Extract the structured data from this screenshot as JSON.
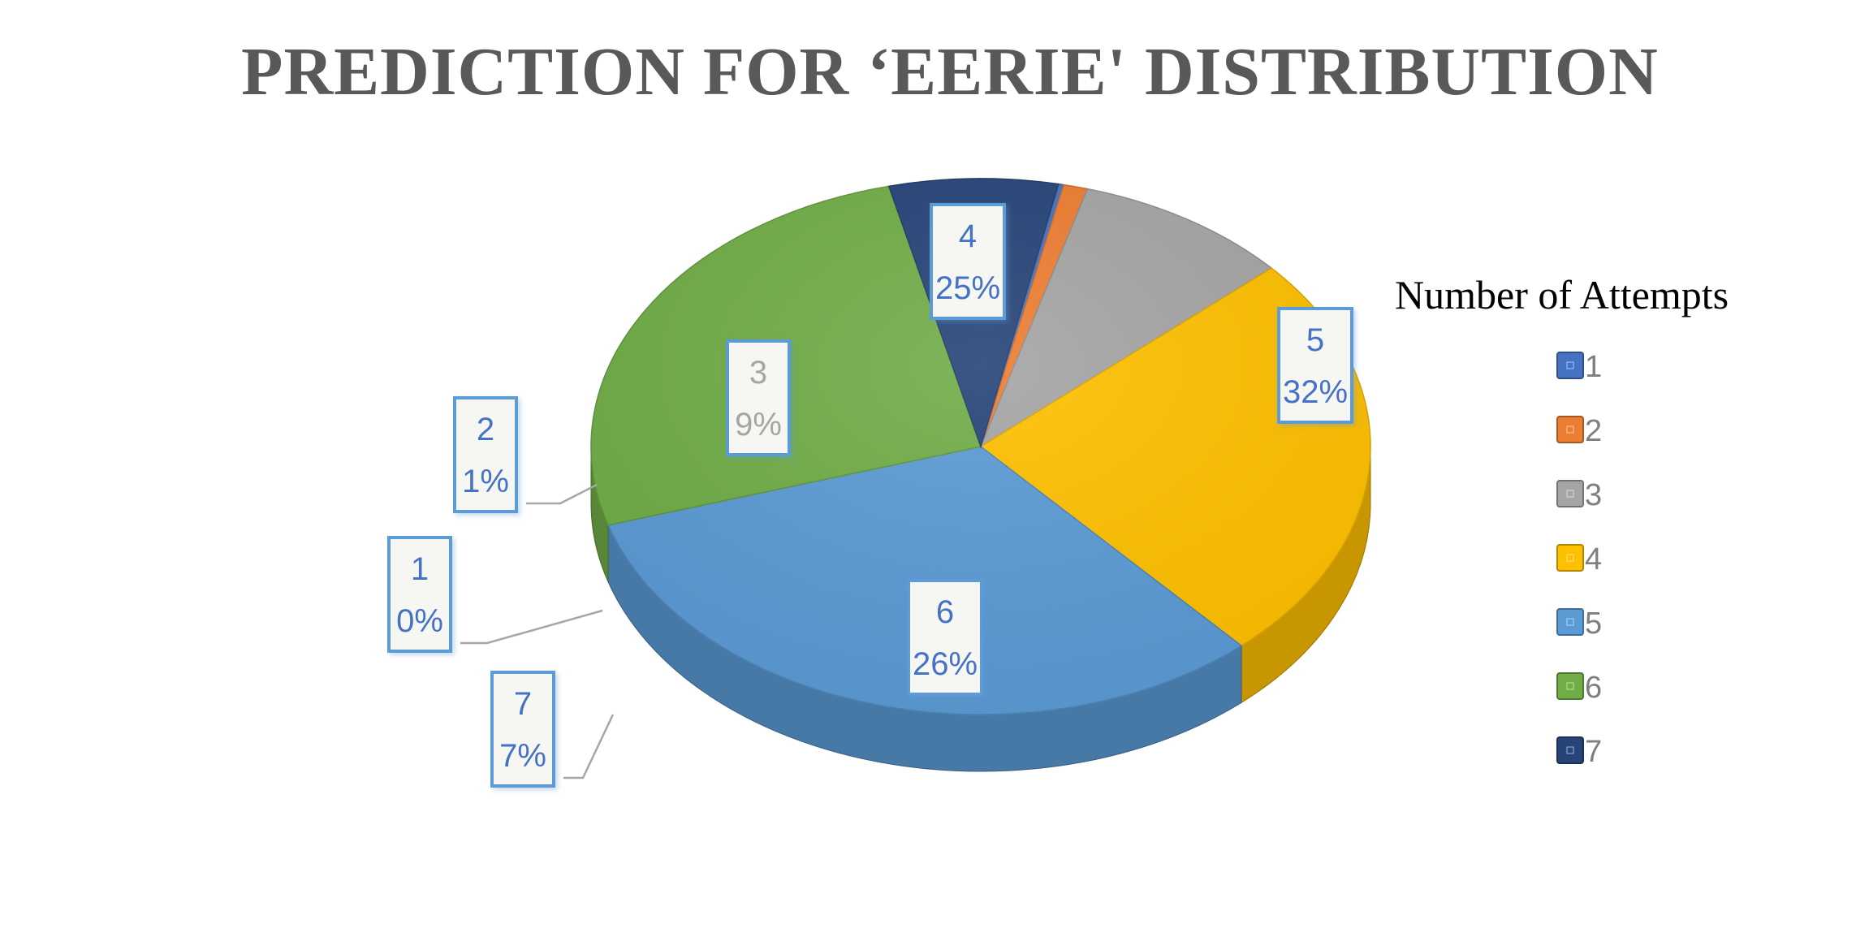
{
  "chart_data": {
    "type": "pie",
    "title": "PREDICTION FOR ‘EERIE' DISTRIBUTION",
    "legend_title": "Number of Attempts",
    "legend_position": "right",
    "style": "3d-pie",
    "slices": [
      {
        "label": "1",
        "value": 0,
        "percent_label": "0%",
        "color": "#4472c4"
      },
      {
        "label": "2",
        "value": 1,
        "percent_label": "1%",
        "color": "#ed7d31"
      },
      {
        "label": "3",
        "value": 9,
        "percent_label": "9%",
        "color": "#a5a5a5"
      },
      {
        "label": "4",
        "value": 25,
        "percent_label": "25%",
        "color": "#ffc000"
      },
      {
        "label": "5",
        "value": 32,
        "percent_label": "32%",
        "color": "#5b9bd5"
      },
      {
        "label": "6",
        "value": 26,
        "percent_label": "26%",
        "color": "#70ad47"
      },
      {
        "label": "7",
        "value": 7,
        "percent_label": "7%",
        "color": "#264478"
      }
    ]
  }
}
